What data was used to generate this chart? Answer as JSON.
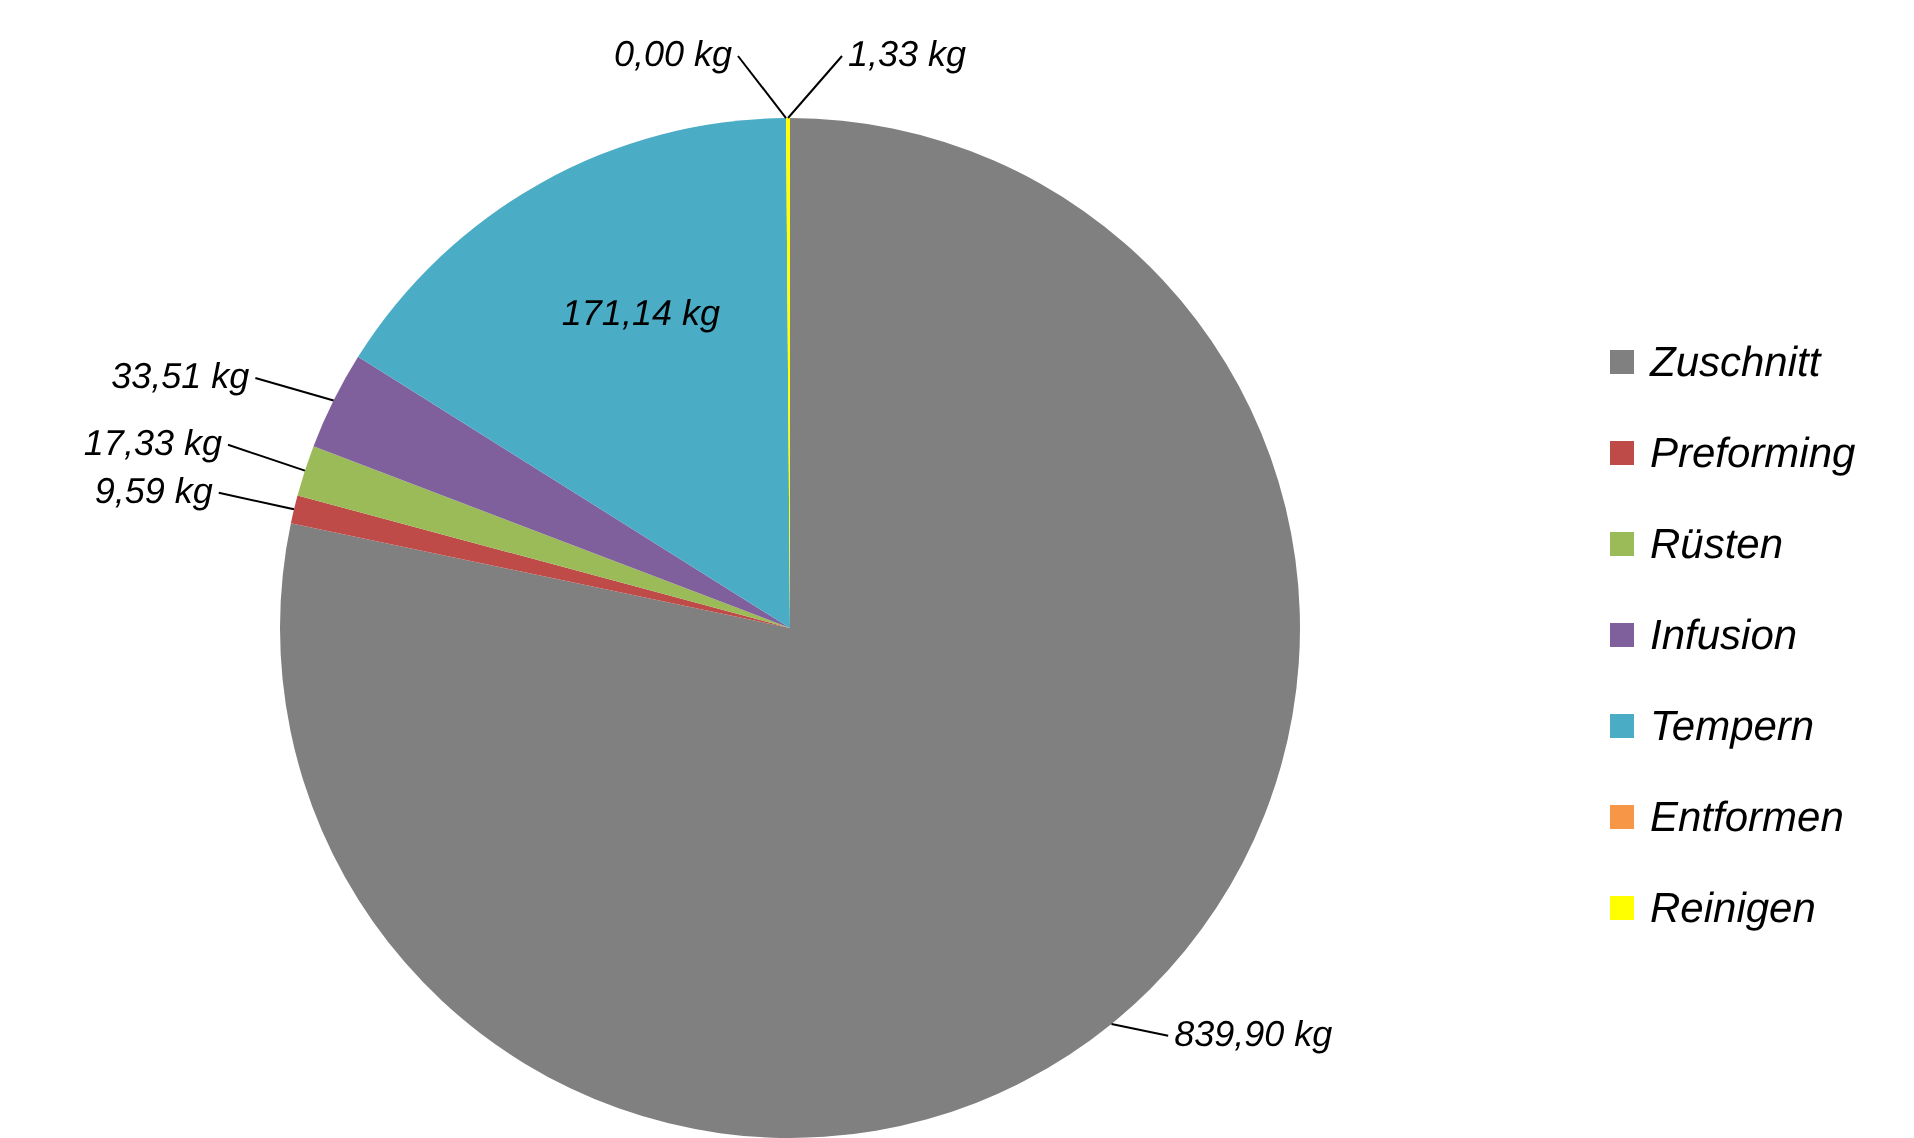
{
  "chart_data": {
    "type": "pie",
    "categories": [
      "Zuschnitt",
      "Preforming",
      "Rüsten",
      "Infusion",
      "Tempern",
      "Entformen",
      "Reinigen"
    ],
    "values": [
      839.9,
      9.59,
      17.33,
      33.51,
      171.14,
      0.0,
      1.33
    ],
    "colors": [
      "#808080",
      "#be4b48",
      "#9bbb59",
      "#7f609d",
      "#4bacc6",
      "#f79646",
      "#ffff00"
    ],
    "value_labels": [
      "839,90 kg",
      "9,59 kg",
      "17,33 kg",
      "33,51 kg",
      "171,14 kg",
      "0,00 kg",
      "1,33 kg"
    ],
    "legend": "right"
  }
}
